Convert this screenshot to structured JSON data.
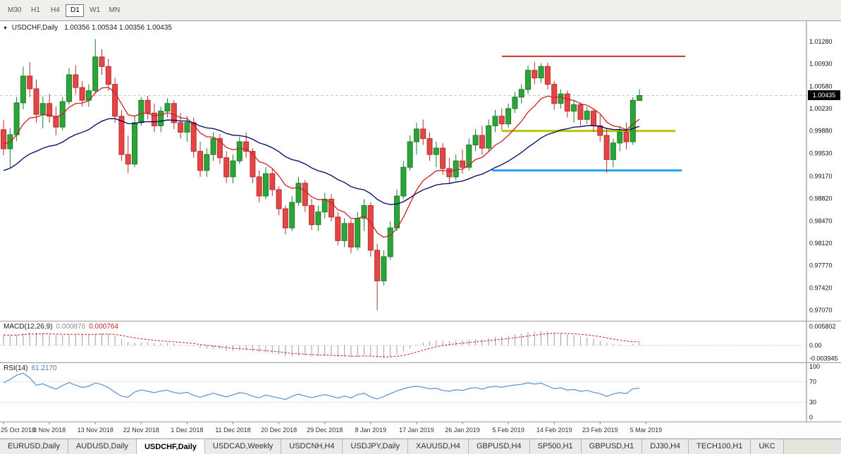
{
  "toolbar": {
    "timeframes": [
      "M30",
      "H1",
      "H4",
      "D1",
      "W1",
      "MN"
    ],
    "active": "D1"
  },
  "chart_header": {
    "symbol": "USDCHF,Daily",
    "ohlc": "1.00356 1.00534 1.00356 1.00435"
  },
  "price_tag": "1.00435",
  "price_axis": {
    "labels": [
      "1.01280",
      "1.00930",
      "1.00580",
      "1.00230",
      "0.99880",
      "0.99530",
      "0.99170",
      "0.98820",
      "0.98470",
      "0.98120",
      "0.97770",
      "0.97420",
      "0.97070"
    ]
  },
  "macd_panel": {
    "label": "MACD(12,26,9)",
    "value1": "0.000876",
    "value2": "0.000764",
    "axis_labels": [
      "0.005802",
      "0.00",
      "-0.003945"
    ],
    "fast": 12,
    "slow": 26,
    "signal": 9
  },
  "rsi_panel": {
    "label": "RSI(14)",
    "value": "61.2170",
    "axis_labels": [
      "100",
      "70",
      "30",
      "0"
    ],
    "period": 14,
    "levels": [
      70,
      30
    ]
  },
  "tabs": {
    "items": [
      "EURUSD,Daily",
      "AUDUSD,Daily",
      "USDCHF,Daily",
      "USDCAD,Weekly",
      "USDCNH,H4",
      "USDJPY,Daily",
      "XAUUSD,H4",
      "GBPUSD,H4",
      "SP500,H1",
      "GBPUSD,H1",
      "DJ30,H4",
      "TECH100,H1",
      "UKC"
    ],
    "active": "USDCHF,Daily"
  },
  "colors": {
    "bull": "#2ca437",
    "bull_border": "#1b7f2a",
    "bear": "#e64545",
    "bear_border": "#b52f2f",
    "macd_hist": "#9aa0a6",
    "macd_signal": "#cc2222",
    "rsi_line": "#5a8fd0",
    "level_red": "#cc3333",
    "level_yellow": "#b8c400",
    "level_blue": "#2a9df4",
    "ma_fast": "#cc2222",
    "ma_slow": "#000066"
  },
  "chart_data": {
    "type": "candlestick",
    "symbol": "USDCHF",
    "timeframe": "Daily",
    "axis": {
      "top_price": 1.0128,
      "bottom_price": 0.9707
    },
    "current_price": 1.00435,
    "date_labels": [
      {
        "i": 0,
        "t": "25 Oct 2018"
      },
      {
        "i": 7,
        "t": "3 Nov 2018"
      },
      {
        "i": 14,
        "t": "13 Nov 2018"
      },
      {
        "i": 21,
        "t": "22 Nov 2018"
      },
      {
        "i": 28,
        "t": "1 Dec 2018"
      },
      {
        "i": 35,
        "t": "11 Dec 2018"
      },
      {
        "i": 42,
        "t": "20 Dec 2018"
      },
      {
        "i": 49,
        "t": "29 Dec 2018"
      },
      {
        "i": 56,
        "t": "8 Jan 2019"
      },
      {
        "i": 63,
        "t": "17 Jan 2019"
      },
      {
        "i": 70,
        "t": "26 Jan 2019"
      },
      {
        "i": 77,
        "t": "5 Feb 2019"
      },
      {
        "i": 84,
        "t": "14 Feb 2019"
      },
      {
        "i": 91,
        "t": "23 Feb 2019"
      },
      {
        "i": 98,
        "t": "5 Mar 2019"
      }
    ],
    "levels": [
      {
        "name": "resistance-line-red",
        "color": "#cc3333",
        "price": 1.0105,
        "from": 76,
        "to": 104,
        "width": 2
      },
      {
        "name": "support-line-yellow",
        "color": "#b8c400",
        "price": 0.9988,
        "from": 76,
        "to": 102.5,
        "width": 3
      },
      {
        "name": "support-line-blue",
        "color": "#2a9df4",
        "price": 0.9926,
        "from": 74.5,
        "to": 103.5,
        "width": 3
      }
    ],
    "moving_averages": [
      {
        "name": "ma-fast",
        "type": "ema",
        "period": 10,
        "color": "#cc2222"
      },
      {
        "name": "ma-slow",
        "type": "ema",
        "period": 30,
        "color": "#000066"
      }
    ],
    "warmup_closes": [
      0.98,
      0.98,
      0.9802,
      0.98,
      0.9804,
      0.981,
      0.9815,
      0.9821,
      0.9826,
      0.9832,
      0.9837,
      0.9843,
      0.9848,
      0.9854,
      0.9859,
      0.9865,
      0.987,
      0.9876,
      0.9881,
      0.9887,
      0.9892,
      0.9898,
      0.9903,
      0.9909,
      0.9914,
      0.992,
      0.9925,
      0.9931,
      0.9936,
      0.9942,
      0.9947,
      0.9953,
      0.9958,
      0.9964,
      0.9969,
      0.9975,
      0.998,
      0.9984,
      0.9987,
      0.9989
    ],
    "candles": [
      [
        0.999,
        1.0005,
        0.995,
        0.996
      ],
      [
        0.996,
        0.9992,
        0.993,
        0.9982
      ],
      [
        0.9982,
        1.0041,
        0.9972,
        1.0032
      ],
      [
        1.0032,
        1.0089,
        1.0022,
        1.0074
      ],
      [
        1.0074,
        1.0096,
        1.0041,
        1.0054
      ],
      [
        1.0054,
        1.0068,
        1.0001,
        1.0014
      ],
      [
        1.0014,
        1.0042,
        0.9992,
        1.0031
      ],
      [
        1.0031,
        1.0046,
        1.0001,
        1.0011
      ],
      [
        1.0011,
        1.0026,
        0.9981,
        0.9994
      ],
      [
        0.9994,
        1.0041,
        0.9989,
        1.0034
      ],
      [
        1.0034,
        1.0086,
        1.0029,
        1.0076
      ],
      [
        1.0076,
        1.0091,
        1.0046,
        1.0056
      ],
      [
        1.0056,
        1.0066,
        1.0026,
        1.0036
      ],
      [
        1.0036,
        1.0061,
        1.0026,
        1.0051
      ],
      [
        1.0051,
        1.0132,
        1.0046,
        1.0104
      ],
      [
        1.0104,
        1.0116,
        1.0076,
        1.0089
      ],
      [
        1.0089,
        1.0101,
        1.0051,
        1.0061
      ],
      [
        1.0061,
        1.0071,
        1.0001,
        1.0011
      ],
      [
        1.0011,
        1.0021,
        0.9941,
        0.9951
      ],
      [
        0.9951,
        0.9981,
        0.9922,
        0.9936
      ],
      [
        0.9936,
        1.0011,
        0.9931,
        1.0001
      ],
      [
        1.0001,
        1.0041,
        0.9996,
        1.0036
      ],
      [
        1.0036,
        1.0043,
        1.0006,
        1.0016
      ],
      [
        1.0016,
        1.0031,
        0.9986,
        0.9996
      ],
      [
        0.9996,
        1.0026,
        0.9986,
        1.0019
      ],
      [
        1.0019,
        1.0039,
        1.0009,
        1.0031
      ],
      [
        1.0031,
        1.0036,
        0.9991,
        1.0001
      ],
      [
        1.0001,
        1.0016,
        0.9976,
        0.9986
      ],
      [
        0.9986,
        1.0011,
        0.9971,
        1.0001
      ],
      [
        1.0001,
        1.0009,
        0.9946,
        0.9956
      ],
      [
        0.9956,
        0.9971,
        0.9916,
        0.9926
      ],
      [
        0.9926,
        0.9961,
        0.9916,
        0.9951
      ],
      [
        0.9951,
        0.9986,
        0.9941,
        0.9976
      ],
      [
        0.9976,
        0.9983,
        0.9936,
        0.9946
      ],
      [
        0.9946,
        0.9956,
        0.9906,
        0.9916
      ],
      [
        0.9916,
        0.9951,
        0.9906,
        0.9941
      ],
      [
        0.9941,
        0.9979,
        0.9936,
        0.9971
      ],
      [
        0.9971,
        0.9986,
        0.9946,
        0.9956
      ],
      [
        0.9956,
        0.9961,
        0.9906,
        0.9916
      ],
      [
        0.9916,
        0.9926,
        0.9876,
        0.9886
      ],
      [
        0.9886,
        0.9931,
        0.9881,
        0.9921
      ],
      [
        0.9921,
        0.9929,
        0.9886,
        0.9896
      ],
      [
        0.9896,
        0.9901,
        0.9856,
        0.9866
      ],
      [
        0.9866,
        0.9871,
        0.9826,
        0.9836
      ],
      [
        0.9836,
        0.9886,
        0.9831,
        0.9876
      ],
      [
        0.9876,
        0.9916,
        0.9871,
        0.9906
      ],
      [
        0.9906,
        0.9911,
        0.9861,
        0.9871
      ],
      [
        0.9871,
        0.9881,
        0.9833,
        0.9841
      ],
      [
        0.9841,
        0.9871,
        0.9831,
        0.9861
      ],
      [
        0.9861,
        0.9891,
        0.9851,
        0.9881
      ],
      [
        0.9881,
        0.9889,
        0.9846,
        0.9853
      ],
      [
        0.9853,
        0.9861,
        0.9809,
        0.9816
      ],
      [
        0.9816,
        0.9851,
        0.9806,
        0.9843
      ],
      [
        0.9843,
        0.9849,
        0.9796,
        0.9806
      ],
      [
        0.9806,
        0.9861,
        0.9801,
        0.9851
      ],
      [
        0.9851,
        0.9881,
        0.9831,
        0.9871
      ],
      [
        0.9871,
        0.9876,
        0.9791,
        0.9801
      ],
      [
        0.9801,
        0.9811,
        0.9707,
        0.9753
      ],
      [
        0.9753,
        0.9801,
        0.9746,
        0.9791
      ],
      [
        0.9791,
        0.9846,
        0.9786,
        0.9836
      ],
      [
        0.9836,
        0.9896,
        0.9831,
        0.9886
      ],
      [
        0.9886,
        0.9941,
        0.9881,
        0.9931
      ],
      [
        0.9931,
        0.9981,
        0.9926,
        0.9971
      ],
      [
        0.9971,
        1.0001,
        0.9951,
        0.9991
      ],
      [
        0.9991,
        1.0006,
        0.9966,
        0.9976
      ],
      [
        0.9976,
        0.9986,
        0.9941,
        0.9951
      ],
      [
        0.9951,
        0.9971,
        0.9931,
        0.9961
      ],
      [
        0.9961,
        0.9969,
        0.9919,
        0.9929
      ],
      [
        0.9929,
        0.9946,
        0.9906,
        0.9916
      ],
      [
        0.9916,
        0.9951,
        0.9911,
        0.9941
      ],
      [
        0.9941,
        0.9959,
        0.9921,
        0.9931
      ],
      [
        0.9931,
        0.9976,
        0.9926,
        0.9966
      ],
      [
        0.9966,
        0.9991,
        0.9956,
        0.9981
      ],
      [
        0.9981,
        0.9996,
        0.9951,
        0.9961
      ],
      [
        0.9961,
        1.0006,
        0.9956,
        0.9996
      ],
      [
        0.9996,
        1.0021,
        0.9986,
        1.0011
      ],
      [
        1.0011,
        1.0023,
        0.9989,
        0.9999
      ],
      [
        0.9999,
        1.0031,
        0.9993,
        1.0023
      ],
      [
        1.0023,
        1.0049,
        1.0016,
        1.0041
      ],
      [
        1.0041,
        1.0061,
        1.0031,
        1.0053
      ],
      [
        1.0053,
        1.0091,
        1.0046,
        1.0083
      ],
      [
        1.0083,
        1.0096,
        1.0061,
        1.0071
      ],
      [
        1.0071,
        1.0094,
        1.0063,
        1.0089
      ],
      [
        1.0089,
        1.0095,
        1.0053,
        1.0061
      ],
      [
        1.0061,
        1.0066,
        1.0021,
        1.0031
      ],
      [
        1.0031,
        1.0053,
        1.0023,
        1.0046
      ],
      [
        1.0046,
        1.0051,
        1.0009,
        1.0019
      ],
      [
        1.0019,
        1.0036,
        1.0001,
        1.0029
      ],
      [
        1.0029,
        1.0033,
        0.9996,
        1.0006
      ],
      [
        1.0006,
        1.0026,
        0.9999,
        1.0019
      ],
      [
        1.0019,
        1.0023,
        0.9986,
        0.9996
      ],
      [
        0.9996,
        1.0013,
        0.9971,
        0.9981
      ],
      [
        0.9981,
        0.9991,
        0.9922,
        0.9943
      ],
      [
        0.9943,
        0.9976,
        0.9931,
        0.9969
      ],
      [
        0.9969,
        0.9996,
        0.9956,
        0.9986
      ],
      [
        0.9986,
        1.0001,
        0.9959,
        0.9971
      ],
      [
        0.9971,
        1.0041,
        0.9966,
        1.0036
      ],
      [
        1.00356,
        1.00534,
        1.00356,
        1.00435
      ]
    ]
  }
}
